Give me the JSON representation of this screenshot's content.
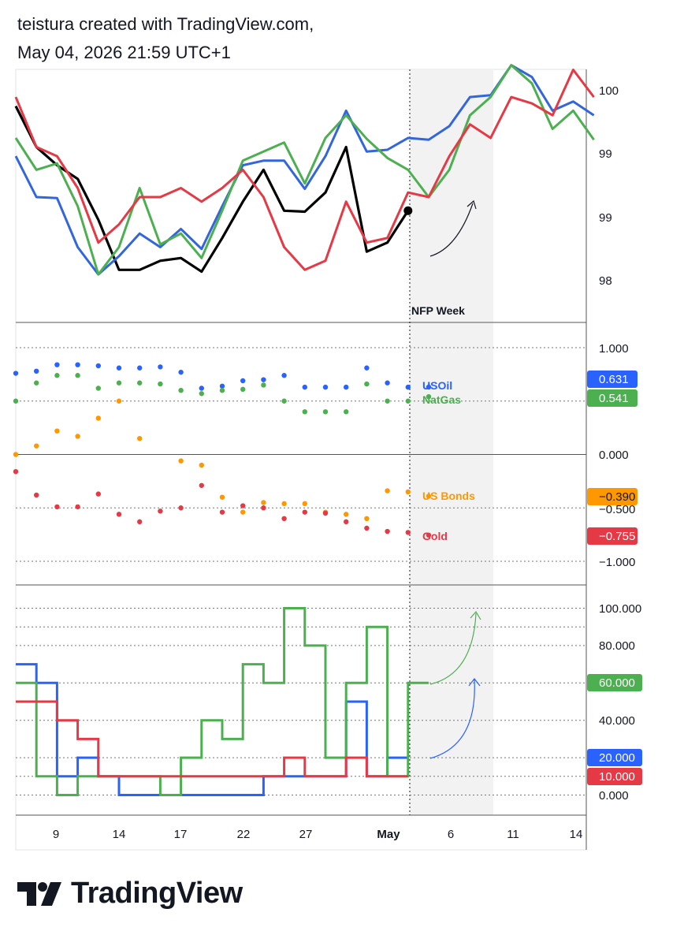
{
  "header": {
    "line1": "teistura created with TradingView.com,",
    "line2": "May 04, 2026 21:59 UTC+1"
  },
  "footer": {
    "brand": "TradingView",
    "logo_icon": "tradingview-logo-icon"
  },
  "chart_data": [
    {
      "type": "line",
      "panel": "price",
      "y_tick_labels": [
        "100",
        "99",
        "99",
        "98"
      ],
      "annotation": "NFP Week",
      "x_index_range": [
        0,
        27
      ],
      "y_range": [
        97.7,
        100.3
      ],
      "series": [
        {
          "color": "#000000",
          "values": [
            100.0,
            99.55,
            99.35,
            99.2,
            98.75,
            98.2,
            98.2,
            98.3,
            98.33,
            98.18,
            98.55,
            98.95,
            99.3,
            98.85,
            98.84,
            99.05,
            99.55,
            98.4,
            98.5,
            98.85
          ]
        },
        {
          "color": "#3366dd",
          "values": [
            99.45,
            99.0,
            98.99,
            98.45,
            98.15,
            98.35,
            98.6,
            98.45,
            98.65,
            98.43,
            98.9,
            99.35,
            99.4,
            99.4,
            99.09,
            99.45,
            99.95,
            99.5,
            99.52,
            99.65,
            99.63,
            99.78,
            100.1,
            100.12,
            100.45,
            100.32,
            99.95,
            100.05,
            99.9
          ]
        },
        {
          "color": "#4caf50",
          "values": [
            99.65,
            99.3,
            99.37,
            98.9,
            98.15,
            98.45,
            99.1,
            98.48,
            98.6,
            98.33,
            98.85,
            99.4,
            99.5,
            99.6,
            99.15,
            99.65,
            99.9,
            99.64,
            99.43,
            99.3,
            99.0,
            99.3,
            99.9,
            100.1,
            100.45,
            100.25,
            99.75,
            99.95,
            99.63
          ]
        },
        {
          "color": "#e53945",
          "values": [
            100.1,
            99.55,
            99.45,
            99.1,
            98.5,
            98.7,
            99.0,
            99.0,
            99.1,
            98.95,
            99.1,
            99.3,
            99.0,
            98.45,
            98.2,
            98.3,
            98.95,
            98.5,
            98.55,
            99.05,
            99.0,
            99.45,
            99.8,
            99.65,
            100.1,
            100.03,
            99.9,
            100.4,
            100.1
          ]
        }
      ]
    },
    {
      "type": "scatter",
      "panel": "correlation",
      "y_range": [
        -1.2,
        1.2
      ],
      "y_tick_labels": [
        "1.000",
        "0.000",
        "-0.500",
        "-1.000"
      ],
      "series": [
        {
          "name": "USOil",
          "color": "#2962ff",
          "last_label": "0.631",
          "values": [
            0.76,
            0.78,
            0.84,
            0.84,
            0.83,
            0.81,
            0.81,
            0.82,
            0.77,
            0.62,
            0.64,
            0.69,
            0.7,
            0.74,
            0.63,
            0.63,
            0.63,
            0.81,
            0.67,
            0.63,
            0.631
          ]
        },
        {
          "name": "NatGas",
          "color": "#4caf50",
          "last_label": "0.541",
          "values": [
            0.5,
            0.67,
            0.74,
            0.74,
            0.62,
            0.67,
            0.67,
            0.66,
            0.6,
            0.57,
            0.6,
            0.61,
            0.65,
            0.5,
            0.4,
            0.4,
            0.4,
            0.66,
            0.5,
            0.5,
            0.541
          ]
        },
        {
          "name": "US Bonds",
          "color": "#ff9800",
          "last_label": "-0.390",
          "values": [
            0.0,
            0.08,
            0.22,
            0.17,
            0.34,
            0.5,
            0.15,
            null,
            -0.06,
            -0.1,
            -0.4,
            -0.54,
            -0.45,
            -0.46,
            -0.46,
            -0.54,
            -0.56,
            -0.6,
            -0.34,
            -0.35,
            -0.39
          ]
        },
        {
          "name": "Gold",
          "color": "#e53945",
          "last_label": "-0.755",
          "values": [
            -0.16,
            -0.38,
            -0.49,
            -0.49,
            -0.37,
            -0.56,
            -0.63,
            -0.53,
            -0.5,
            -0.29,
            -0.54,
            -0.48,
            -0.5,
            -0.6,
            -0.54,
            -0.55,
            -0.63,
            -0.69,
            -0.72,
            -0.73,
            -0.755
          ]
        }
      ]
    },
    {
      "type": "line",
      "panel": "cot",
      "step": true,
      "y_range": [
        -5,
        110
      ],
      "y_tick_labels": [
        "100.000",
        "80.000",
        "60.000",
        "40.000",
        "20.000",
        "10.000",
        "0.000"
      ],
      "series": [
        {
          "color": "#2962ff",
          "last_label": "20.000",
          "values": [
            70,
            60,
            10,
            20,
            10,
            0,
            0,
            0,
            0,
            0,
            0,
            0,
            10,
            10,
            10,
            10,
            50,
            10,
            20
          ]
        },
        {
          "color": "#4caf50",
          "last_label": "60.000",
          "values": [
            60,
            10,
            0,
            10,
            10,
            10,
            10,
            0,
            20,
            40,
            30,
            70,
            60,
            100,
            80,
            20,
            60,
            90,
            10,
            60
          ]
        },
        {
          "color": "#e53945",
          "last_label": "10.000",
          "values": [
            50,
            50,
            40,
            30,
            10,
            10,
            10,
            10,
            10,
            10,
            10,
            10,
            10,
            20,
            10,
            10,
            20,
            10,
            10
          ]
        }
      ]
    }
  ],
  "x_axis": {
    "tick_labels": [
      "9",
      "14",
      "17",
      "22",
      "27",
      "May",
      "6",
      "11",
      "14"
    ],
    "bold_label": "May"
  },
  "colors": {
    "black": "#000000",
    "blue": "#2962ff",
    "green": "#4caf50",
    "red": "#e53945",
    "orange": "#ff9800",
    "shade": "#f2f2f2"
  }
}
